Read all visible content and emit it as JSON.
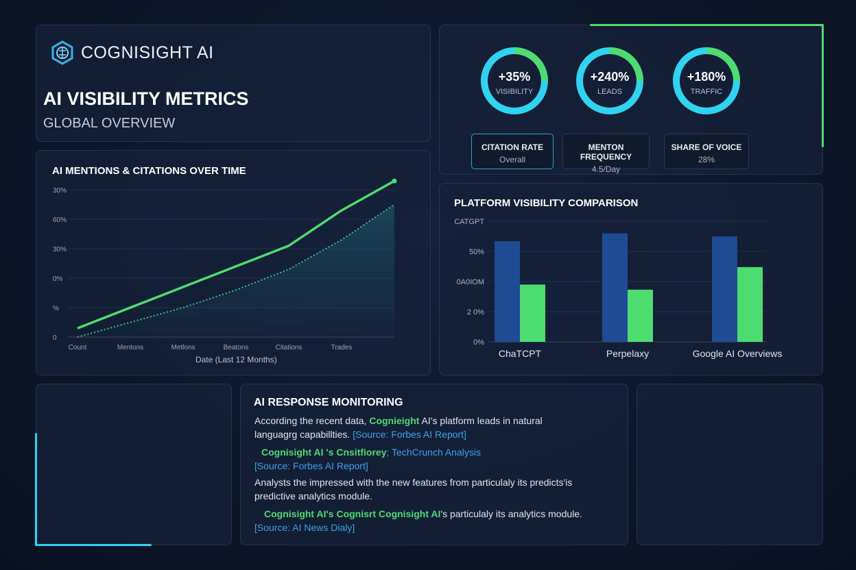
{
  "brand": {
    "name": "COGNISIGHT AI",
    "logo_icon": "brain-hexagon-icon"
  },
  "header": {
    "title": "AI VISIBILITY METRICS",
    "subtitle": "GLOBAL OVERVIEW"
  },
  "kpis": [
    {
      "value": "+35%",
      "label": "VISIBILITY",
      "progress": 0.25
    },
    {
      "value": "+240%",
      "label": "LEADS",
      "progress": 0.25
    },
    {
      "value": "+180%",
      "label": "TRAFFIC",
      "progress": 0.25
    }
  ],
  "stats": [
    {
      "title": "CITATION RATE",
      "value": "Overall",
      "selected": true
    },
    {
      "title": "MENTON FREQUENCY",
      "value": "4.5/Day"
    },
    {
      "title": "SHARE OF VOICE",
      "value": "28%"
    }
  ],
  "colors": {
    "accent_green": "#4ddc70",
    "accent_cyan": "#2fd3f0",
    "bar_blue": "#1f4b94",
    "background": "#0d1628"
  },
  "chart_data": [
    {
      "type": "line",
      "title": "AI MENTIONS & CITATIONS OVER TIME",
      "xlabel": "Date (Last 12 Months)",
      "ylabel": "",
      "x_tick_labels": [
        "Count",
        "Mentons",
        "Metlons",
        "Beatons",
        "Citations",
        "Trades"
      ],
      "y_tick_labels": [
        "0",
        "%",
        "0%",
        "30%",
        "60%",
        "30%"
      ],
      "x": [
        0,
        1,
        2,
        3,
        4,
        5,
        6
      ],
      "xlim": [
        0,
        6
      ],
      "ylim": [
        0,
        5
      ],
      "grid": true,
      "series": [
        {
          "style": "solid",
          "color": "#4ddc70",
          "values": [
            0.3,
            1.0,
            1.7,
            2.4,
            3.1,
            4.3,
            5.3
          ]
        },
        {
          "style": "dotted-area",
          "color": "#3fc29a",
          "values": [
            0,
            0.5,
            1.0,
            1.6,
            2.3,
            3.3,
            4.5
          ]
        }
      ]
    },
    {
      "type": "bar",
      "title": "PLATFORM VISIBILITY COMPARISON",
      "categories": [
        "ChaTCPT",
        "Perpelaxy",
        "Google AI Overviews"
      ],
      "y_tick_labels": [
        "0%",
        "2 0%",
        "0A0IOM",
        "50%",
        "CATGPT"
      ],
      "ylim": [
        0,
        4
      ],
      "grid": true,
      "series": [
        {
          "color": "#1f4b94",
          "values": [
            3.34,
            3.6,
            3.5
          ]
        },
        {
          "color": "#4ddc70",
          "values": [
            1.9,
            1.73,
            2.48
          ]
        }
      ]
    }
  ],
  "monitoring": {
    "title": "AI RESPONSE MONITORING",
    "p1": {
      "a": "According the recent data, ",
      "b": "Cognieight",
      "c": " AI's platform leads in natural languagrg capabillties. ",
      "src": "[Source: Forbes AI Report]"
    },
    "p2": {
      "a": "Cognisight AI 's Cnsitfiorey",
      "b": "; TechCrunch Analysis",
      "src": "[Source: Forbes AI Report]"
    },
    "p3": "Analysts the impressed with the new features from particulaly its predicts'is predictive analytics module.",
    "p4": {
      "a": "Cognisight AI's Cognisrt Cognisight AI",
      "b": "'s particulaly its analytics module.",
      "src": "[Source: AI News Dialy]"
    }
  }
}
